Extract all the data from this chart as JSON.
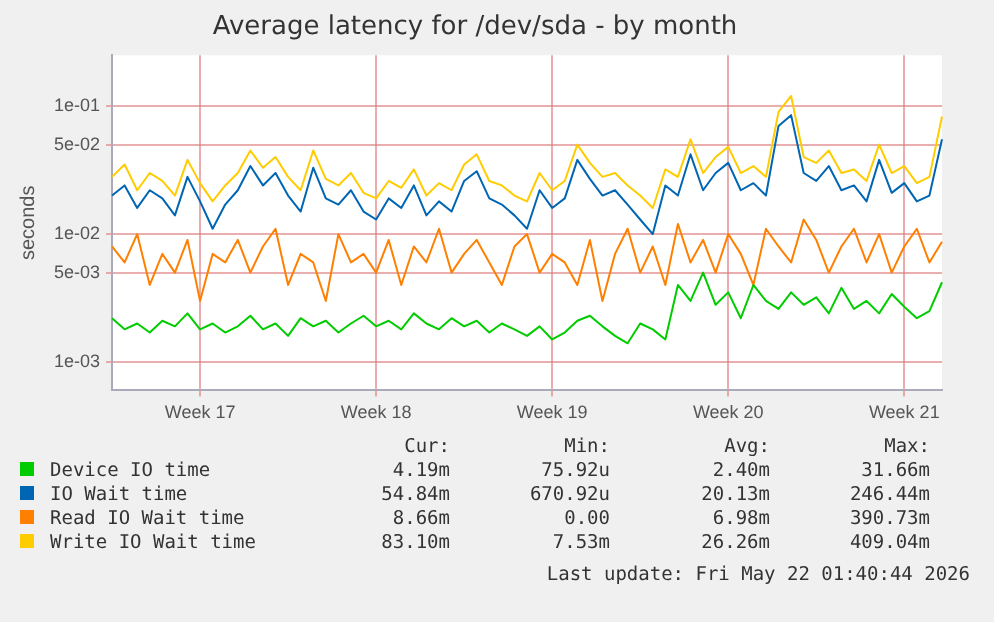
{
  "chart_data": {
    "type": "line",
    "title": "Average latency for /dev/sda - by month",
    "ylabel": "seconds",
    "categories": [
      null,
      null,
      null,
      null,
      null,
      null,
      null,
      "Week 17",
      null,
      null,
      null,
      null,
      null,
      null,
      null,
      null,
      null,
      null,
      null,
      null,
      null,
      "Week 18",
      null,
      null,
      null,
      null,
      null,
      null,
      null,
      null,
      null,
      null,
      null,
      null,
      null,
      "Week 19",
      null,
      null,
      null,
      null,
      null,
      null,
      null,
      null,
      null,
      null,
      null,
      null,
      null,
      "Week 20",
      null,
      null,
      null,
      null,
      null,
      null,
      null,
      null,
      null,
      null,
      null,
      null,
      null,
      "Week 21",
      null,
      null,
      null
    ],
    "series": [
      {
        "name": "Device IO time",
        "color": "#00cc00",
        "values": [
          0.0022,
          0.0018,
          0.002,
          0.0017,
          0.0021,
          0.0019,
          0.0024,
          0.0018,
          0.002,
          0.0017,
          0.0019,
          0.0023,
          0.0018,
          0.002,
          0.0016,
          0.0022,
          0.0019,
          0.0021,
          0.0017,
          0.002,
          0.0023,
          0.0019,
          0.0021,
          0.0018,
          0.0024,
          0.002,
          0.0018,
          0.0022,
          0.0019,
          0.0021,
          0.0017,
          0.002,
          0.0018,
          0.0016,
          0.0019,
          0.0015,
          0.0017,
          0.0021,
          0.0023,
          0.0019,
          0.0016,
          0.0014,
          0.002,
          0.0018,
          0.0015,
          0.004,
          0.003,
          0.005,
          0.0028,
          0.0035,
          0.0022,
          0.004,
          0.003,
          0.0026,
          0.0035,
          0.0028,
          0.0032,
          0.0024,
          0.0038,
          0.0026,
          0.003,
          0.0024,
          0.0034,
          0.0027,
          0.0022,
          0.0025,
          0.0042
        ]
      },
      {
        "name": "IO Wait time",
        "color": "#0066b3",
        "values": [
          0.02,
          0.024,
          0.016,
          0.022,
          0.019,
          0.014,
          0.028,
          0.018,
          0.011,
          0.017,
          0.022,
          0.034,
          0.024,
          0.03,
          0.02,
          0.015,
          0.033,
          0.019,
          0.017,
          0.022,
          0.015,
          0.013,
          0.019,
          0.016,
          0.024,
          0.014,
          0.018,
          0.015,
          0.026,
          0.031,
          0.019,
          0.017,
          0.014,
          0.011,
          0.022,
          0.016,
          0.019,
          0.038,
          0.027,
          0.02,
          0.022,
          0.017,
          0.013,
          0.01,
          0.024,
          0.02,
          0.042,
          0.022,
          0.03,
          0.036,
          0.022,
          0.025,
          0.02,
          0.07,
          0.085,
          0.03,
          0.026,
          0.034,
          0.022,
          0.024,
          0.018,
          0.038,
          0.021,
          0.025,
          0.018,
          0.02,
          0.055
        ]
      },
      {
        "name": "Read IO Wait time",
        "color": "#ff8000",
        "values": [
          0.008,
          0.006,
          0.01,
          0.004,
          0.007,
          0.005,
          0.009,
          0.003,
          0.007,
          0.006,
          0.009,
          0.005,
          0.008,
          0.011,
          0.004,
          0.007,
          0.006,
          0.003,
          0.01,
          0.006,
          0.007,
          0.005,
          0.009,
          0.004,
          0.008,
          0.006,
          0.011,
          0.005,
          0.007,
          0.009,
          0.006,
          0.004,
          0.008,
          0.01,
          0.005,
          0.007,
          0.006,
          0.004,
          0.009,
          0.003,
          0.007,
          0.011,
          0.005,
          0.008,
          0.004,
          0.012,
          0.006,
          0.009,
          0.005,
          0.01,
          0.007,
          0.004,
          0.011,
          0.008,
          0.006,
          0.013,
          0.009,
          0.005,
          0.008,
          0.011,
          0.006,
          0.01,
          0.005,
          0.008,
          0.011,
          0.006,
          0.0087
        ]
      },
      {
        "name": "Write IO Wait time",
        "color": "#ffcc00",
        "values": [
          0.028,
          0.035,
          0.022,
          0.03,
          0.026,
          0.02,
          0.038,
          0.025,
          0.018,
          0.024,
          0.03,
          0.045,
          0.033,
          0.04,
          0.028,
          0.022,
          0.045,
          0.027,
          0.024,
          0.03,
          0.021,
          0.019,
          0.026,
          0.023,
          0.032,
          0.02,
          0.025,
          0.022,
          0.035,
          0.042,
          0.026,
          0.024,
          0.02,
          0.018,
          0.03,
          0.022,
          0.026,
          0.05,
          0.036,
          0.028,
          0.03,
          0.024,
          0.02,
          0.016,
          0.032,
          0.028,
          0.055,
          0.03,
          0.04,
          0.048,
          0.03,
          0.034,
          0.028,
          0.09,
          0.12,
          0.04,
          0.036,
          0.045,
          0.03,
          0.032,
          0.026,
          0.05,
          0.03,
          0.034,
          0.025,
          0.028,
          0.083
        ]
      }
    ],
    "log": "y",
    "ylim": [
      0.0006,
      0.25
    ],
    "yticks": [
      {
        "value": 0.001,
        "label": "1e-03"
      },
      {
        "value": 0.005,
        "label": "5e-03"
      },
      {
        "value": 0.01,
        "label": "1e-02"
      },
      {
        "value": 0.05,
        "label": "5e-02"
      },
      {
        "value": 0.1,
        "label": "1e-01"
      }
    ],
    "grid": true,
    "legend": "bottom",
    "marker": "none",
    "line_style": "solid",
    "annotations": [
      "Cur:",
      "Min:",
      "Avg:",
      "Max:",
      "4.19m",
      "75.92u",
      "2.40m",
      "31.66m",
      "54.84m",
      "670.92u",
      "20.13m",
      "246.44m",
      "8.66m",
      "0.00",
      "6.98m",
      "390.73m",
      "83.10m",
      "7.53m",
      "26.26m",
      "409.04m",
      "Last update: Fri May 22 01:40:44 2026"
    ]
  }
}
